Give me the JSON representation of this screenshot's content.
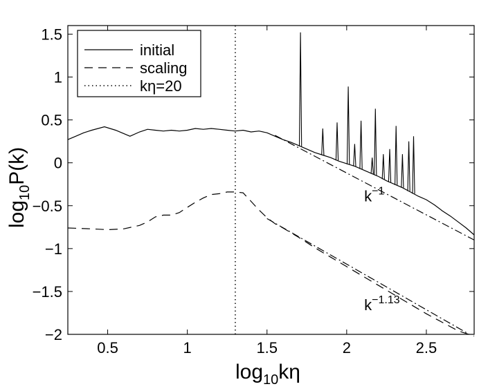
{
  "chart_data": {
    "type": "line",
    "xlabel": {
      "base": "log",
      "sub": "10",
      "rest": "kη"
    },
    "ylabel": {
      "base": "log",
      "sub": "10",
      "rest": "P(k)"
    },
    "xlim": [
      0.25,
      2.8
    ],
    "ylim": [
      -2,
      1.6
    ],
    "xticks": [
      0.5,
      1,
      1.5,
      2,
      2.5
    ],
    "xtick_labels": [
      "0.5",
      "1",
      "1.5",
      "2",
      "2.5"
    ],
    "yticks": [
      1.5,
      1,
      0.5,
      0,
      -0.5,
      -1,
      -1.5,
      -2
    ],
    "ytick_labels": [
      "1.5",
      "1",
      "0.5",
      "0",
      "−0.5",
      "−1",
      "−1.5",
      "−2"
    ],
    "legend": {
      "location": "top-left",
      "entries": [
        {
          "label": "initial",
          "style": "solid"
        },
        {
          "label": "scaling",
          "style": "dashed"
        },
        {
          "label": "kη=20",
          "style": "dotted"
        }
      ]
    },
    "series": [
      {
        "name": "initial",
        "style": "solid",
        "x": [
          0.25,
          0.3,
          0.35,
          0.4,
          0.48,
          0.55,
          0.64,
          0.7,
          0.75,
          0.8,
          0.85,
          0.9,
          0.95,
          1.0,
          1.05,
          1.1,
          1.15,
          1.2,
          1.25,
          1.3,
          1.35,
          1.4,
          1.45,
          1.5,
          1.55,
          1.6,
          1.65,
          1.7,
          1.75,
          1.8,
          1.85,
          1.9,
          1.95,
          2.0,
          2.05,
          2.1,
          2.15,
          2.2,
          2.25,
          2.3,
          2.35,
          2.4,
          2.45,
          2.5,
          2.55,
          2.6,
          2.65,
          2.7,
          2.75,
          2.8
        ],
        "y": [
          0.27,
          0.31,
          0.35,
          0.38,
          0.42,
          0.38,
          0.31,
          0.36,
          0.39,
          0.38,
          0.37,
          0.38,
          0.37,
          0.38,
          0.4,
          0.39,
          0.4,
          0.39,
          0.38,
          0.37,
          0.38,
          0.36,
          0.37,
          0.35,
          0.31,
          0.27,
          0.24,
          0.2,
          0.16,
          0.12,
          0.09,
          0.06,
          0.02,
          -0.01,
          -0.04,
          -0.08,
          -0.12,
          -0.16,
          -0.21,
          -0.25,
          -0.29,
          -0.34,
          -0.39,
          -0.43,
          -0.49,
          -0.56,
          -0.62,
          -0.69,
          -0.76,
          -0.84
        ]
      },
      {
        "name": "initial-spikes",
        "style": "solid",
        "x": [
          1.71,
          1.85,
          1.94,
          2.01,
          2.05,
          2.09,
          2.16,
          2.18,
          2.23,
          2.27,
          2.31,
          2.35,
          2.39,
          2.42
        ],
        "y": [
          1.52,
          0.4,
          0.47,
          0.89,
          0.22,
          0.49,
          0.06,
          0.63,
          0.1,
          0.16,
          0.43,
          0.1,
          0.25,
          0.31
        ]
      },
      {
        "name": "scaling",
        "style": "dashed",
        "x": [
          0.25,
          0.4,
          0.5,
          0.6,
          0.7,
          0.75,
          0.8,
          0.85,
          0.9,
          0.95,
          1.0,
          1.05,
          1.1,
          1.15,
          1.2,
          1.25,
          1.3,
          1.35,
          1.4,
          1.45,
          1.5,
          1.55,
          1.6,
          1.7,
          1.8,
          1.9,
          2.0,
          2.1,
          2.2,
          2.3,
          2.4,
          2.5,
          2.6,
          2.7,
          2.8
        ],
        "y": [
          -0.76,
          -0.77,
          -0.78,
          -0.77,
          -0.73,
          -0.69,
          -0.63,
          -0.61,
          -0.61,
          -0.58,
          -0.52,
          -0.46,
          -0.41,
          -0.37,
          -0.36,
          -0.34,
          -0.34,
          -0.35,
          -0.45,
          -0.55,
          -0.64,
          -0.71,
          -0.76,
          -0.87,
          -0.99,
          -1.1,
          -1.21,
          -1.32,
          -1.43,
          -1.54,
          -1.65,
          -1.76,
          -1.86,
          -1.96,
          -2.02
        ]
      },
      {
        "name": "k^-1 reference",
        "style": "dash-dot",
        "x": [
          1.55,
          2.8
        ],
        "y": [
          0.32,
          -0.9
        ]
      },
      {
        "name": "k^-1.13 reference",
        "style": "dash-dot",
        "x": [
          1.5,
          2.77
        ],
        "y": [
          -0.65,
          -2.0
        ]
      },
      {
        "name": "kη=20",
        "style": "dotted",
        "x": [
          1.301,
          1.301
        ],
        "y": [
          -2,
          1.6
        ]
      }
    ],
    "annotations": [
      {
        "base": "k",
        "sup": "−1",
        "x": 2.11,
        "y": -0.45
      },
      {
        "base": "k",
        "sup": "−1.13",
        "x": 2.11,
        "y": -1.72
      }
    ]
  }
}
